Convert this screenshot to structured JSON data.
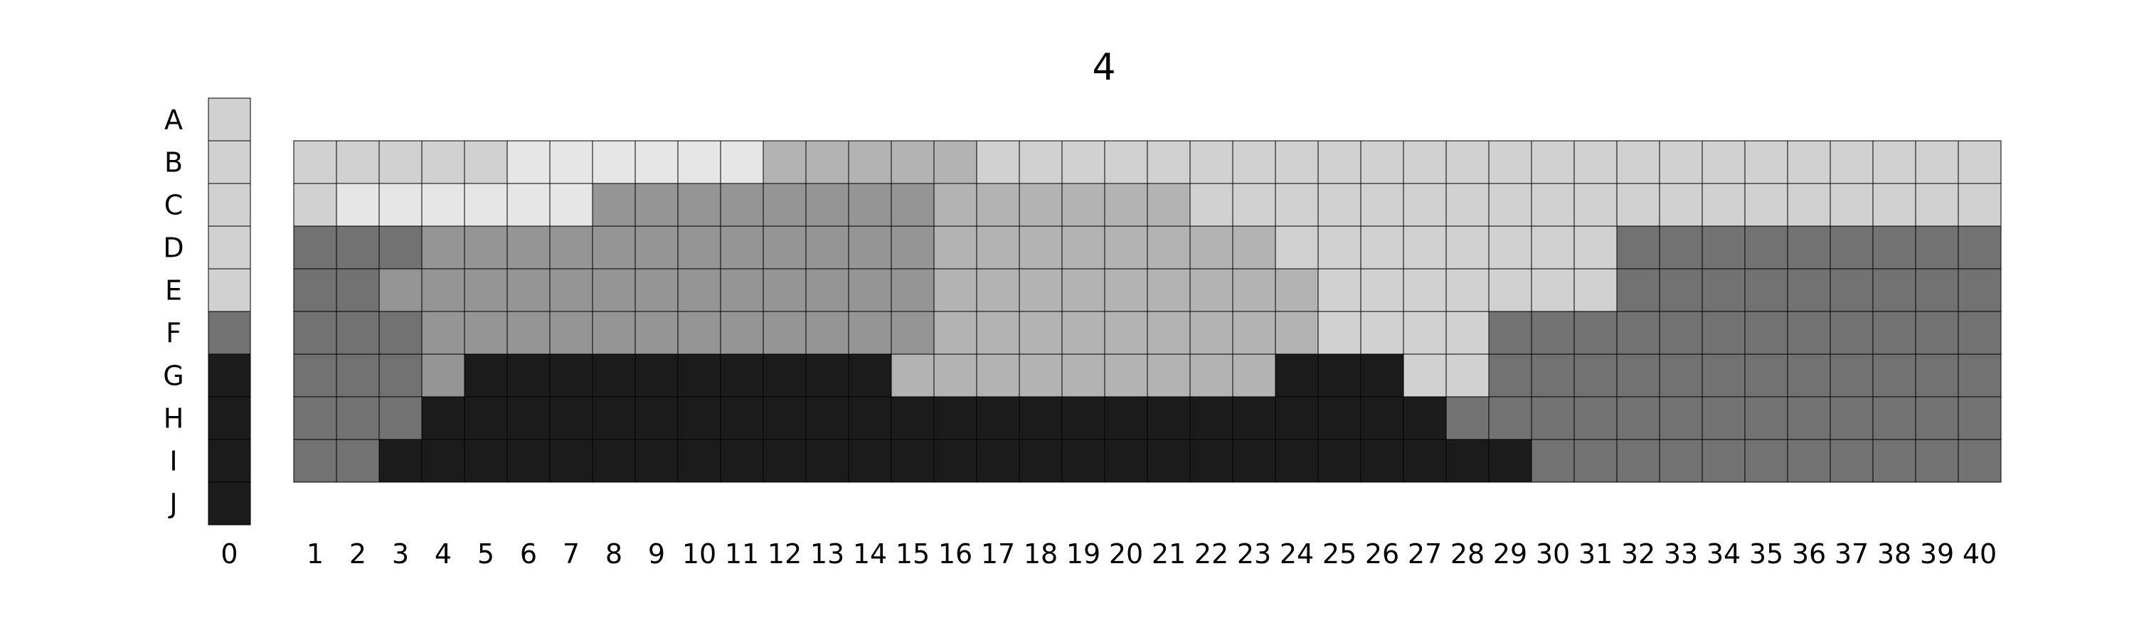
{
  "chart_data": {
    "type": "heatmap",
    "title": "4",
    "row_labels": [
      "A",
      "B",
      "C",
      "D",
      "E",
      "F",
      "G",
      "H",
      "I",
      "J"
    ],
    "reference_label": "0",
    "column_labels": [
      "1",
      "2",
      "3",
      "4",
      "5",
      "6",
      "7",
      "8",
      "9",
      "10",
      "11",
      "12",
      "13",
      "14",
      "15",
      "16",
      "17",
      "18",
      "19",
      "20",
      "21",
      "22",
      "23",
      "24",
      "25",
      "26",
      "27",
      "28",
      "29",
      "30",
      "31",
      "32",
      "33",
      "34",
      "35",
      "36",
      "37",
      "38",
      "39",
      "40"
    ],
    "palette": {
      "1": "#1b1b1b",
      "2": "#727272",
      "3": "#959595",
      "4": "#b3b3b3",
      "5": "#d1d1d1",
      "6": "#e6e6e6"
    },
    "reference_column": [
      5,
      5,
      5,
      5,
      5,
      2,
      1,
      1,
      1,
      1
    ],
    "grid_rows": [
      "B",
      "C",
      "D",
      "E",
      "F",
      "G",
      "H",
      "I"
    ],
    "grid": [
      [
        5,
        5,
        5,
        5,
        5,
        6,
        6,
        6,
        6,
        6,
        6,
        4,
        4,
        4,
        4,
        4,
        5,
        5,
        5,
        5,
        5,
        5,
        5,
        5,
        5,
        5,
        5,
        5,
        5,
        5,
        5,
        5,
        5,
        5,
        5,
        5,
        5,
        5,
        5,
        5
      ],
      [
        5,
        6,
        6,
        6,
        6,
        6,
        6,
        3,
        3,
        3,
        3,
        3,
        3,
        3,
        3,
        4,
        4,
        4,
        4,
        4,
        4,
        5,
        5,
        5,
        5,
        5,
        5,
        5,
        5,
        5,
        5,
        5,
        5,
        5,
        5,
        5,
        5,
        5,
        5,
        5
      ],
      [
        2,
        2,
        2,
        3,
        3,
        3,
        3,
        3,
        3,
        3,
        3,
        3,
        3,
        3,
        3,
        4,
        4,
        4,
        4,
        4,
        4,
        4,
        4,
        5,
        5,
        5,
        5,
        5,
        5,
        5,
        5,
        2,
        2,
        2,
        2,
        2,
        2,
        2,
        2,
        2
      ],
      [
        2,
        2,
        3,
        3,
        3,
        3,
        3,
        3,
        3,
        3,
        3,
        3,
        3,
        3,
        3,
        4,
        4,
        4,
        4,
        4,
        4,
        4,
        4,
        4,
        5,
        5,
        5,
        5,
        5,
        5,
        5,
        2,
        2,
        2,
        2,
        2,
        2,
        2,
        2,
        2
      ],
      [
        2,
        2,
        2,
        3,
        3,
        3,
        3,
        3,
        3,
        3,
        3,
        3,
        3,
        3,
        3,
        4,
        4,
        4,
        4,
        4,
        4,
        4,
        4,
        4,
        5,
        5,
        5,
        5,
        2,
        2,
        2,
        2,
        2,
        2,
        2,
        2,
        2,
        2,
        2,
        2
      ],
      [
        2,
        2,
        2,
        3,
        1,
        1,
        1,
        1,
        1,
        1,
        1,
        1,
        1,
        1,
        4,
        4,
        4,
        4,
        4,
        4,
        4,
        4,
        4,
        1,
        1,
        1,
        5,
        5,
        2,
        2,
        2,
        2,
        2,
        2,
        2,
        2,
        2,
        2,
        2,
        2
      ],
      [
        2,
        2,
        2,
        1,
        1,
        1,
        1,
        1,
        1,
        1,
        1,
        1,
        1,
        1,
        1,
        1,
        1,
        1,
        1,
        1,
        1,
        1,
        1,
        1,
        1,
        1,
        1,
        2,
        2,
        2,
        2,
        2,
        2,
        2,
        2,
        2,
        2,
        2,
        2,
        2
      ],
      [
        2,
        2,
        1,
        1,
        1,
        1,
        1,
        1,
        1,
        1,
        1,
        1,
        1,
        1,
        1,
        1,
        1,
        1,
        1,
        1,
        1,
        1,
        1,
        1,
        1,
        1,
        1,
        1,
        1,
        2,
        2,
        2,
        2,
        2,
        2,
        2,
        2,
        2,
        2,
        2
      ]
    ]
  }
}
